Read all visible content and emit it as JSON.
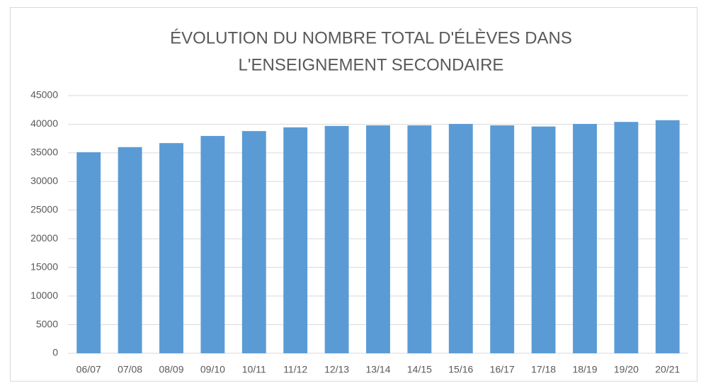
{
  "chart_data": {
    "type": "bar",
    "title": [
      "ÉVOLUTION DU NOMBRE TOTAL D'ÉLÈVES DANS",
      "L'ENSEIGNEMENT SECONDAIRE"
    ],
    "categories": [
      "06/07",
      "07/08",
      "08/09",
      "09/10",
      "10/11",
      "11/12",
      "12/13",
      "13/14",
      "14/15",
      "15/16",
      "16/17",
      "17/18",
      "18/19",
      "19/20",
      "20/21"
    ],
    "values": [
      35100,
      36000,
      36700,
      37950,
      38800,
      39450,
      39700,
      39800,
      39800,
      40050,
      39800,
      39600,
      40050,
      40400,
      40700
    ],
    "color": "#5b9bd5",
    "ylim": [
      0,
      45000
    ],
    "yticks": [
      0,
      5000,
      10000,
      15000,
      20000,
      25000,
      30000,
      35000,
      40000,
      45000
    ],
    "grid": true
  }
}
